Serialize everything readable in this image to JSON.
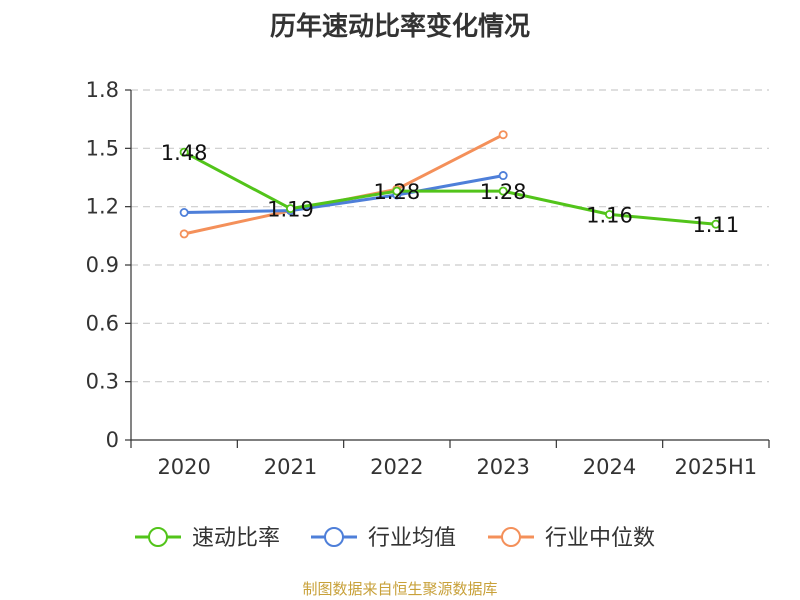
{
  "chart_data": {
    "type": "line",
    "title": "历年速动比率变化情况",
    "categories": [
      "2020",
      "2021",
      "2022",
      "2023",
      "2024",
      "2025H1"
    ],
    "yticks": [
      "0",
      "0.3",
      "0.6",
      "0.9",
      "1.2",
      "1.5",
      "1.8"
    ],
    "ylim": [
      0,
      1.8
    ],
    "grid": true,
    "legend_position": "bottom",
    "series": [
      {
        "name": "速动比率",
        "color": "#52c41a",
        "values": [
          1.48,
          1.19,
          1.28,
          1.28,
          1.16,
          1.11
        ],
        "labels": [
          "1.48",
          "1.19",
          "1.28",
          "1.28",
          "1.16",
          "1.11"
        ]
      },
      {
        "name": "行业均值",
        "color": "#4e7fd9",
        "values": [
          1.17,
          1.18,
          1.26,
          1.36,
          null,
          null
        ]
      },
      {
        "name": "行业中位数",
        "color": "#f4905a",
        "values": [
          1.06,
          1.18,
          1.29,
          1.57,
          null,
          null
        ]
      }
    ]
  },
  "footer": {
    "source": "制图数据来自恒生聚源数据库"
  }
}
